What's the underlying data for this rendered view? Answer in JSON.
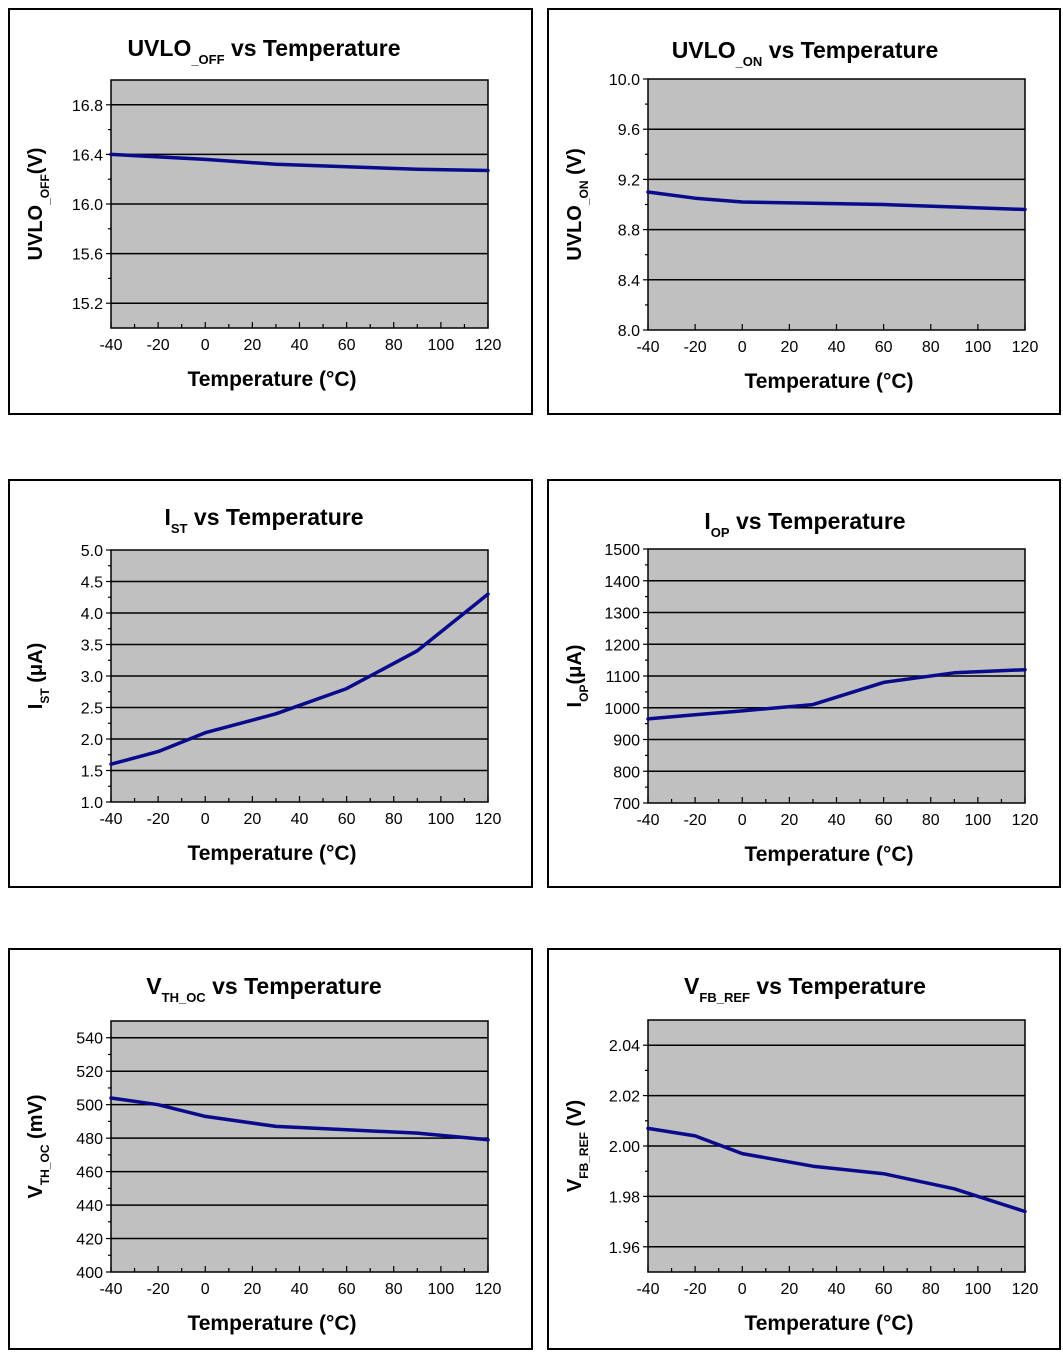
{
  "chart_data": [
    {
      "type": "line",
      "title": {
        "main": "UVLO",
        "sub": "_OFF",
        "rest": " vs Temperature"
      },
      "ylabel": {
        "main": "UVLO",
        "sub": "_OFF",
        "rest": "(V)"
      },
      "xlabel": "Temperature (°C)",
      "xlim": [
        -40,
        120
      ],
      "ylim": [
        15.0,
        17.0
      ],
      "x_ticks": [
        "-40",
        "-20",
        "0",
        "20",
        "40",
        "60",
        "80",
        "100",
        "120"
      ],
      "y_ticks": [
        {
          "v": 15.2,
          "label": "15.2"
        },
        {
          "v": 15.6,
          "label": "15.6"
        },
        {
          "v": 16.0,
          "label": "16.0"
        },
        {
          "v": 16.4,
          "label": "16.4"
        },
        {
          "v": 16.8,
          "label": "16.8"
        }
      ],
      "grid_y": [
        15.2,
        15.6,
        16.0,
        16.4,
        16.8
      ],
      "x_minor": true,
      "x": [
        -40,
        -20,
        0,
        30,
        60,
        90,
        120
      ],
      "y": [
        16.4,
        16.38,
        16.36,
        16.32,
        16.3,
        16.28,
        16.27
      ]
    },
    {
      "type": "line",
      "title": {
        "main": "UVLO",
        "sub": "_ON",
        "rest": " vs Temperature"
      },
      "ylabel": {
        "main": "UVLO",
        "sub": "_ON",
        "rest": " (V)"
      },
      "xlabel": "Temperature (°C)",
      "xlim": [
        -40,
        120
      ],
      "ylim": [
        8.0,
        10.0
      ],
      "x_ticks": [
        "-40",
        "-20",
        "0",
        "20",
        "40",
        "60",
        "80",
        "100",
        "120"
      ],
      "y_ticks": [
        {
          "v": 8.0,
          "label": "8.0"
        },
        {
          "v": 8.4,
          "label": "8.4"
        },
        {
          "v": 8.8,
          "label": "8.8"
        },
        {
          "v": 9.2,
          "label": "9.2"
        },
        {
          "v": 9.6,
          "label": "9.6"
        },
        {
          "v": 10.0,
          "label": "10.0"
        }
      ],
      "grid_y": [
        8.4,
        8.8,
        9.2,
        9.6
      ],
      "x_minor": false,
      "x": [
        -40,
        -20,
        0,
        30,
        60,
        90,
        120
      ],
      "y": [
        9.1,
        9.05,
        9.02,
        9.01,
        9.0,
        8.98,
        8.96
      ]
    },
    {
      "type": "line",
      "title": {
        "main": "I",
        "sub": "ST",
        "rest": " vs Temperature"
      },
      "ylabel": {
        "main": "I",
        "sub": "ST",
        "rest": " (μA)"
      },
      "xlabel": "Temperature (°C)",
      "xlim": [
        -40,
        120
      ],
      "ylim": [
        1.0,
        5.0
      ],
      "x_ticks": [
        "-40",
        "-20",
        "0",
        "20",
        "40",
        "60",
        "80",
        "100",
        "120"
      ],
      "y_ticks": [
        {
          "v": 1.0,
          "label": "1.0"
        },
        {
          "v": 1.5,
          "label": "1.5"
        },
        {
          "v": 2.0,
          "label": "2.0"
        },
        {
          "v": 2.5,
          "label": "2.5"
        },
        {
          "v": 3.0,
          "label": "3.0"
        },
        {
          "v": 3.5,
          "label": "3.5"
        },
        {
          "v": 4.0,
          "label": "4.0"
        },
        {
          "v": 4.5,
          "label": "4.5"
        },
        {
          "v": 5.0,
          "label": "5.0"
        }
      ],
      "grid_y": [
        1.5,
        2.0,
        2.5,
        3.0,
        3.5,
        4.0,
        4.5
      ],
      "x_minor": true,
      "x": [
        -40,
        -20,
        0,
        30,
        60,
        90,
        120
      ],
      "y": [
        1.6,
        1.8,
        2.1,
        2.4,
        2.8,
        3.4,
        4.3
      ]
    },
    {
      "type": "line",
      "title": {
        "main": "I",
        "sub": "OP",
        "rest": "  vs Temperature"
      },
      "ylabel": {
        "main": "I",
        "sub": "OP",
        "rest": "(μA)"
      },
      "xlabel": "Temperature (°C)",
      "xlim": [
        -40,
        120
      ],
      "ylim": [
        700,
        1500
      ],
      "x_ticks": [
        "-40",
        "-20",
        "0",
        "20",
        "40",
        "60",
        "80",
        "100",
        "120"
      ],
      "y_ticks": [
        {
          "v": 700,
          "label": "700"
        },
        {
          "v": 800,
          "label": "800"
        },
        {
          "v": 900,
          "label": "900"
        },
        {
          "v": 1000,
          "label": "1000"
        },
        {
          "v": 1100,
          "label": "1100"
        },
        {
          "v": 1200,
          "label": "1200"
        },
        {
          "v": 1300,
          "label": "1300"
        },
        {
          "v": 1400,
          "label": "1400"
        },
        {
          "v": 1500,
          "label": "1500"
        }
      ],
      "grid_y": [
        800,
        900,
        1000,
        1100,
        1200,
        1300,
        1400
      ],
      "x_minor": true,
      "x": [
        -40,
        -20,
        0,
        30,
        60,
        90,
        120
      ],
      "y": [
        965,
        978,
        990,
        1010,
        1080,
        1110,
        1120
      ]
    },
    {
      "type": "line",
      "title": {
        "main": "V",
        "sub": "TH_OC",
        "rest": " vs Temperature"
      },
      "ylabel": {
        "main": "V",
        "sub": "TH_OC",
        "rest": " (mV)"
      },
      "xlabel": "Temperature (°C)",
      "xlim": [
        -40,
        120
      ],
      "ylim": [
        400,
        550
      ],
      "x_ticks": [
        "-40",
        "-20",
        "0",
        "20",
        "40",
        "60",
        "80",
        "100",
        "120"
      ],
      "y_ticks": [
        {
          "v": 400,
          "label": "400"
        },
        {
          "v": 420,
          "label": "420"
        },
        {
          "v": 440,
          "label": "440"
        },
        {
          "v": 460,
          "label": "460"
        },
        {
          "v": 480,
          "label": "480"
        },
        {
          "v": 500,
          "label": "500"
        },
        {
          "v": 520,
          "label": "520"
        },
        {
          "v": 540,
          "label": "540"
        }
      ],
      "grid_y": [
        420,
        440,
        460,
        480,
        500,
        520,
        540
      ],
      "x_minor": true,
      "x": [
        -40,
        -20,
        0,
        30,
        60,
        90,
        120
      ],
      "y": [
        504,
        500,
        493,
        487,
        485,
        483,
        479
      ]
    },
    {
      "type": "line",
      "title": {
        "main": "V",
        "sub": "FB_REF",
        "rest": " vs Temperature"
      },
      "ylabel": {
        "main": "V",
        "sub": "FB_REF",
        "rest": " (V)"
      },
      "xlabel": "Temperature (°C)",
      "xlim": [
        -40,
        120
      ],
      "ylim": [
        1.95,
        2.05
      ],
      "x_ticks": [
        "-40",
        "-20",
        "0",
        "20",
        "40",
        "60",
        "80",
        "100",
        "120"
      ],
      "y_ticks": [
        {
          "v": 1.96,
          "label": "1.96"
        },
        {
          "v": 1.98,
          "label": "1.98"
        },
        {
          "v": 2.0,
          "label": "2.00"
        },
        {
          "v": 2.02,
          "label": "2.02"
        },
        {
          "v": 2.04,
          "label": "2.04"
        }
      ],
      "grid_y": [
        1.96,
        1.98,
        2.0,
        2.02,
        2.04
      ],
      "x_minor": true,
      "x": [
        -40,
        -20,
        0,
        30,
        60,
        90,
        120
      ],
      "y": [
        2.007,
        2.004,
        1.997,
        1.992,
        1.989,
        1.983,
        1.974
      ]
    }
  ]
}
